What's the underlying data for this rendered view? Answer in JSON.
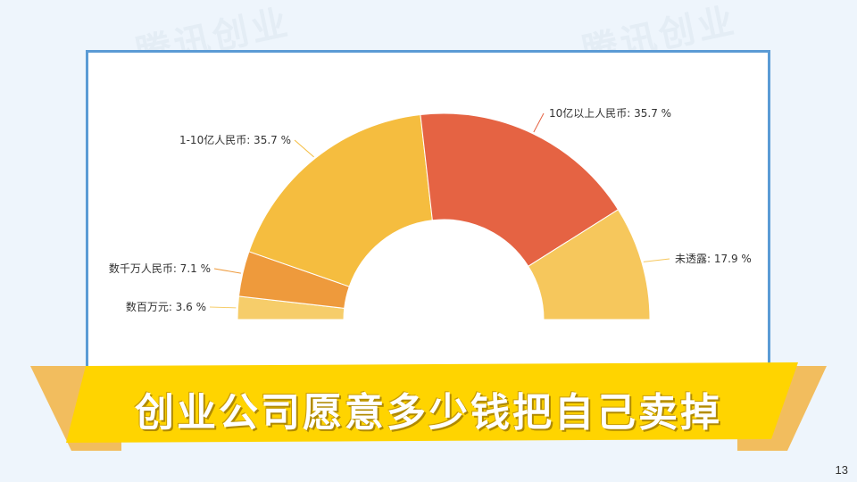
{
  "watermark_text": "腾讯创业",
  "page_number": "13",
  "banner_title": "创业公司愿意多少钱把自己卖掉",
  "chart_data": {
    "type": "pie",
    "variant": "semi-donut",
    "title": "",
    "categories": [
      "数百万元",
      "数千万人民币",
      "1-10亿人民币",
      "10亿以上人民币",
      "未透露"
    ],
    "values": [
      3.6,
      7.1,
      35.7,
      35.7,
      17.9
    ],
    "labels": [
      "数百万元: 3.6 %",
      "数千万人民币: 7.1 %",
      "1-10亿人民币: 35.7 %",
      "10亿以上人民币: 35.7 %",
      "未透露: 17.9 %"
    ],
    "colors": [
      "#f6cd6a",
      "#ee9a3c",
      "#f5bd3f",
      "#e56343",
      "#f6c75c"
    ],
    "unit": "%"
  }
}
